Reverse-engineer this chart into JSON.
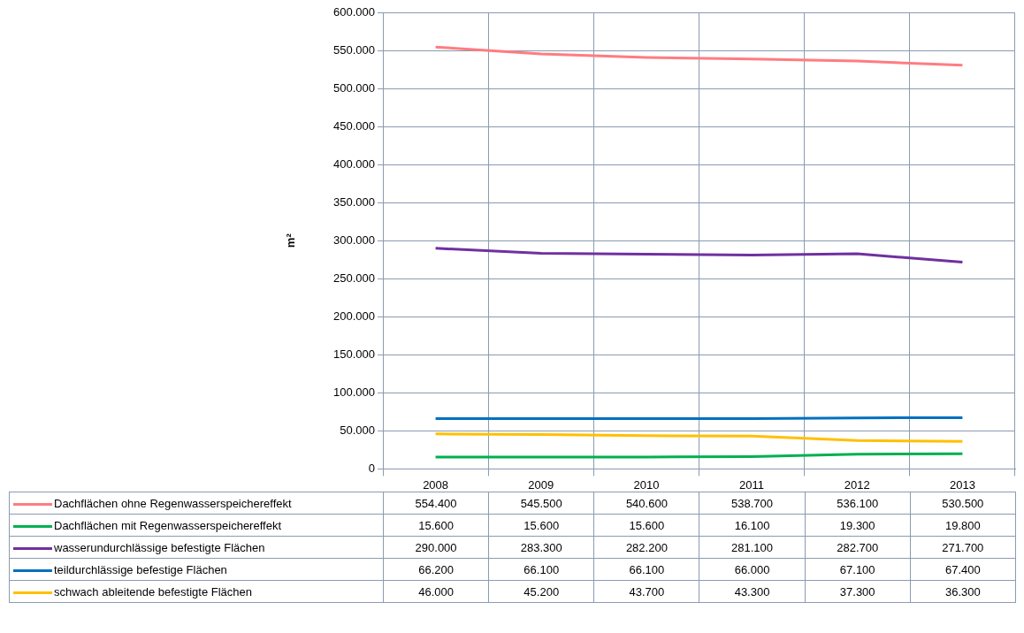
{
  "chart_data": {
    "type": "line",
    "ylabel": "m²",
    "categories": [
      "2008",
      "2009",
      "2010",
      "2011",
      "2012",
      "2013"
    ],
    "ylim": [
      0,
      600000
    ],
    "yticks": [
      {
        "value": 0,
        "label": "0"
      },
      {
        "value": 50000,
        "label": "50.000"
      },
      {
        "value": 100000,
        "label": "100.000"
      },
      {
        "value": 150000,
        "label": "150.000"
      },
      {
        "value": 200000,
        "label": "200.000"
      },
      {
        "value": 250000,
        "label": "250.000"
      },
      {
        "value": 300000,
        "label": "300.000"
      },
      {
        "value": 350000,
        "label": "350.000"
      },
      {
        "value": 400000,
        "label": "400.000"
      },
      {
        "value": 450000,
        "label": "450.000"
      },
      {
        "value": 500000,
        "label": "500.000"
      },
      {
        "value": 550000,
        "label": "550.000"
      },
      {
        "value": 600000,
        "label": "600.000"
      }
    ],
    "grid": true,
    "legend": "bottom",
    "marker": "none",
    "series": [
      {
        "name": "Dachflächen ohne Regenwasserspeichereffekt",
        "color": "#ff7c80",
        "values": [
          554400,
          545500,
          540600,
          538700,
          536100,
          530500
        ],
        "value_labels": [
          "554.400",
          "545.500",
          "540.600",
          "538.700",
          "536.100",
          "530.500"
        ]
      },
      {
        "name": "Dachflächen mit Regenwasserspeichereffekt",
        "color": "#00b050",
        "values": [
          15600,
          15600,
          15600,
          16100,
          19300,
          19800
        ],
        "value_labels": [
          "15.600",
          "15.600",
          "15.600",
          "16.100",
          "19.300",
          "19.800"
        ]
      },
      {
        "name": "wasserundurchlässige befestigte Flächen",
        "color": "#7030a0",
        "values": [
          290000,
          283300,
          282200,
          281100,
          282700,
          271700
        ],
        "value_labels": [
          "290.000",
          "283.300",
          "282.200",
          "281.100",
          "282.700",
          "271.700"
        ]
      },
      {
        "name": "teildurchlässige befestige Flächen",
        "color": "#0070c0",
        "values": [
          66200,
          66100,
          66100,
          66000,
          67100,
          67400
        ],
        "value_labels": [
          "66.200",
          "66.100",
          "66.100",
          "66.000",
          "67.100",
          "67.400"
        ]
      },
      {
        "name": "schwach ableitende befestigte Flächen",
        "color": "#ffc000",
        "values": [
          46000,
          45200,
          43700,
          43300,
          37300,
          36300
        ],
        "value_labels": [
          "46.000",
          "45.200",
          "43.700",
          "43.300",
          "37.300",
          "36.300"
        ]
      }
    ]
  }
}
